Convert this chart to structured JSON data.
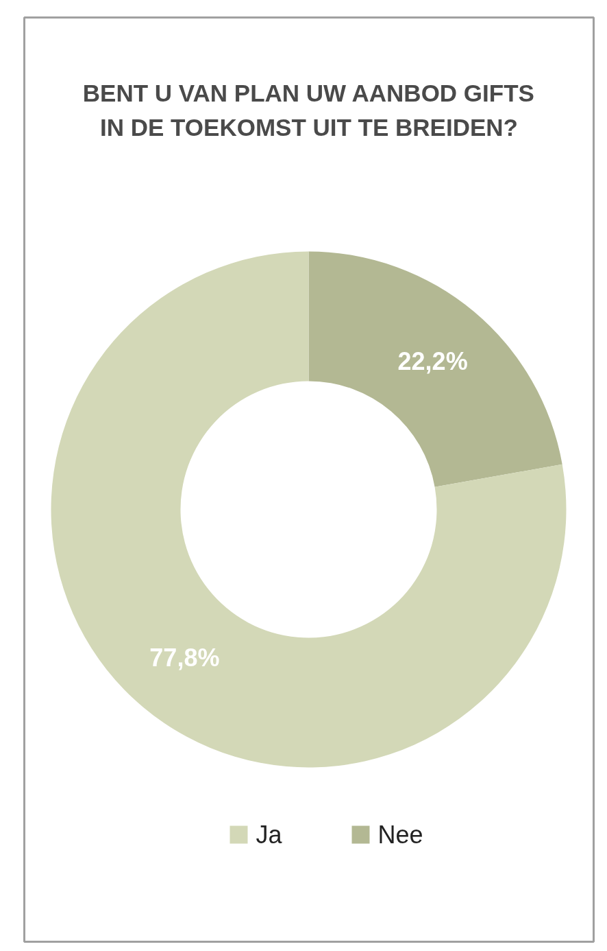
{
  "chart_data": {
    "type": "donut",
    "title": "BENT U VAN PLAN UW AANBOD GIFTS\nIN DE TOEKOMST UIT TE BREIDEN?",
    "categories": [
      "Ja",
      "Nee"
    ],
    "values": [
      77.8,
      22.2
    ],
    "colors": [
      "#d3d8b7",
      "#b3b893"
    ],
    "value_labels": [
      "77,8%",
      "22,2%"
    ],
    "legend": "bottom"
  }
}
